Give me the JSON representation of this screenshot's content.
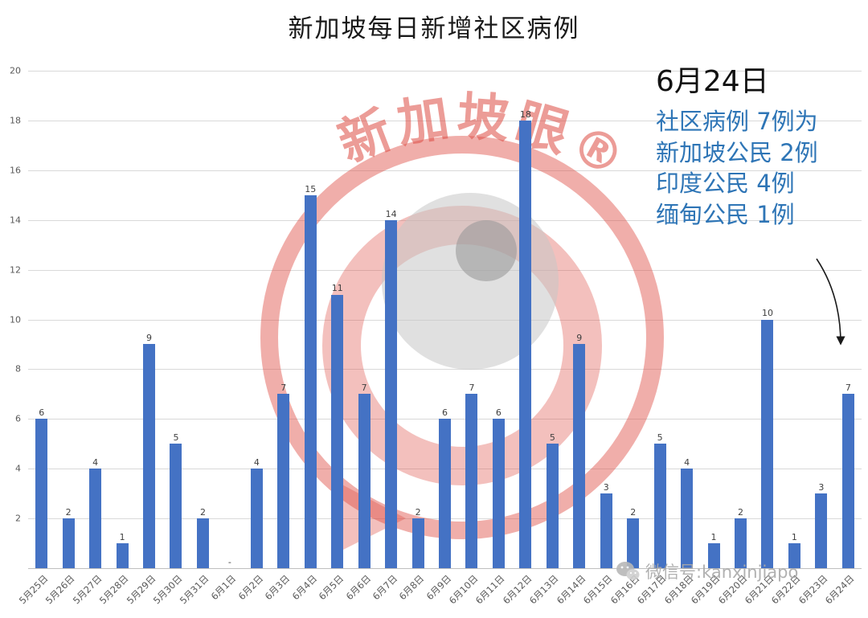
{
  "chart_data": {
    "type": "bar",
    "title": "新加坡每日新增社区病例",
    "categories": [
      "5月25日",
      "5月26日",
      "5月27日",
      "5月28日",
      "5月29日",
      "5月30日",
      "5月31日",
      "6月1日",
      "6月2日",
      "6月3日",
      "6月4日",
      "6月5日",
      "6月6日",
      "6月7日",
      "6月8日",
      "6月9日",
      "6月10日",
      "6月11日",
      "6月12日",
      "6月13日",
      "6月14日",
      "6月15日",
      "6月16日",
      "6月17日",
      "6月18日",
      "6月19日",
      "6月20日",
      "6月21日",
      "6月22日",
      "6月23日",
      "6月24日"
    ],
    "values": [
      6,
      2,
      4,
      1,
      9,
      5,
      2,
      0,
      4,
      7,
      15,
      11,
      7,
      14,
      2,
      6,
      7,
      6,
      18,
      5,
      9,
      3,
      2,
      5,
      4,
      1,
      2,
      10,
      1,
      3,
      7
    ],
    "ylim": [
      0,
      20
    ],
    "ytick_step": 2,
    "grid": true,
    "legend": "none",
    "zero_value_label": "-",
    "annotation": {
      "date": "6月24日",
      "lines": [
        "社区病例 7例为",
        "新加坡公民 2例",
        "印度公民 4例",
        "缅甸公民 1例"
      ],
      "points_to_category": "6月24日"
    }
  },
  "watermark": {
    "brand_arc_text": "新加坡眼®",
    "footer_wechat": "微信号:kanxinjiapo"
  },
  "colors": {
    "bar": "#4472C4",
    "annotation_text": "#2E75B6",
    "annotation_date_text": "#111111",
    "watermark_red": "#DD4B42",
    "grid_line": "#D9D9D9",
    "axis_label": "#595959",
    "footer_gray": "#A9A9A9"
  }
}
